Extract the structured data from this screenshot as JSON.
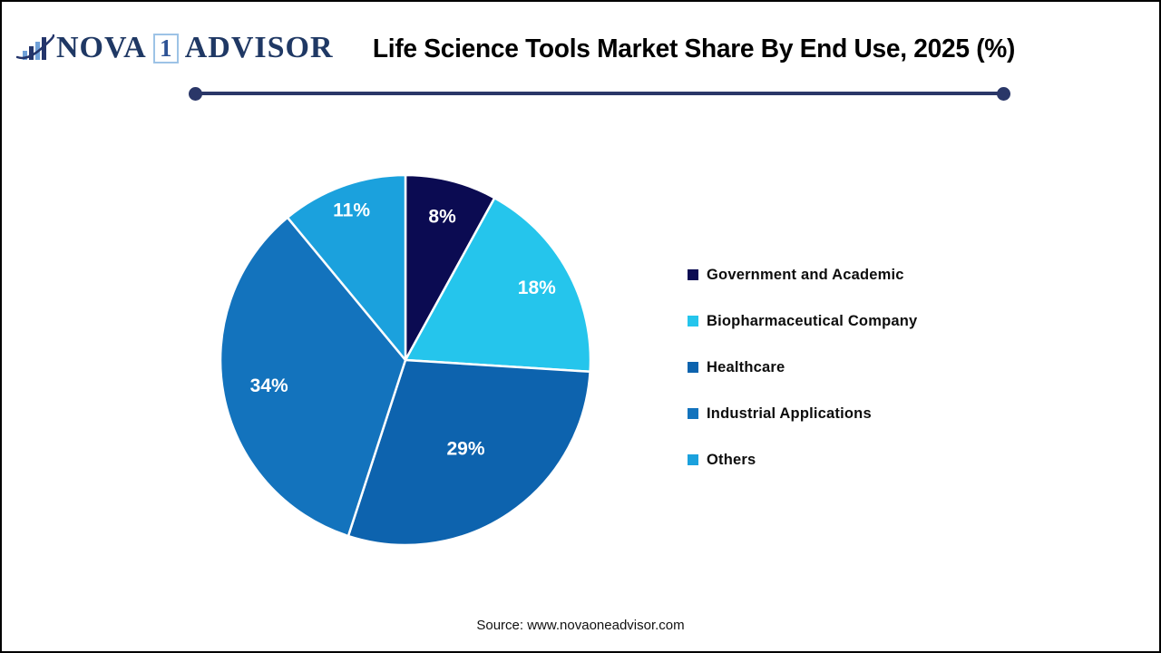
{
  "header": {
    "logo": {
      "nova": "NOVA",
      "one": "1",
      "advisor": "ADVISOR"
    },
    "title": "Life Science Tools Market Share By End Use, 2025 (%)"
  },
  "footer": {
    "source": "Source: www.novaoneadvisor.com"
  },
  "colors": {
    "brand_navy": "#1F3864",
    "logo_light_blue": "#6FA0D8",
    "divider_navy": "#2A3768",
    "slice_label_text": "#FFFFFF"
  },
  "chart_data": {
    "type": "pie",
    "title": "Life Science Tools Market Share By End Use, 2025 (%)",
    "unit": "%",
    "direction": "clockwise",
    "start_angle_deg": 0,
    "legend_position": "right",
    "data_labels": "percent-inside",
    "slices": [
      {
        "label": "Government and Academic",
        "value": 8,
        "label_text": "8%",
        "color": "#0B0B52",
        "label_radius_frac": 0.8
      },
      {
        "label": "Biopharmaceutical Company",
        "value": 18,
        "label_text": "18%",
        "color": "#25C5EC",
        "label_radius_frac": 0.81
      },
      {
        "label": "Healthcare",
        "value": 29,
        "label_text": "29%",
        "color": "#0D63AE",
        "label_radius_frac": 0.58
      },
      {
        "label": "Industrial Applications",
        "value": 34,
        "label_text": "34%",
        "color": "#1373BD",
        "label_radius_frac": 0.75
      },
      {
        "label": "Others",
        "value": 11,
        "label_text": "11%",
        "color": "#1BA1DD",
        "label_radius_frac": 0.86
      }
    ]
  }
}
